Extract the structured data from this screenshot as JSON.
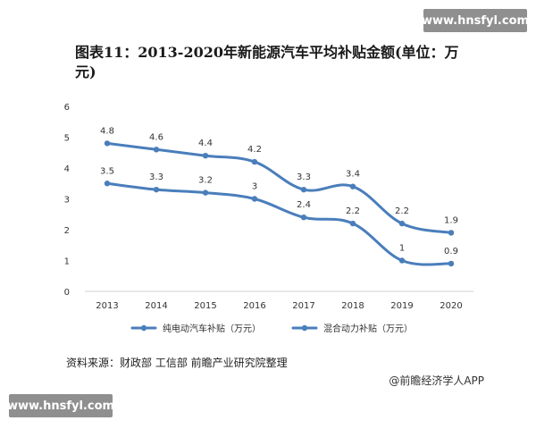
{
  "watermark": {
    "text": "www.hnsfyl.com"
  },
  "header": {
    "title": "图表11：2013-2020年新能源汽车平均补贴金额(单位：万元)"
  },
  "footer": {
    "source": "资料来源：财政部 工信部 前瞻产业研究院整理",
    "brand": "@前瞻经济学人APP"
  },
  "chart_data": {
    "type": "line",
    "title": "图表11：2013-2020年新能源汽车平均补贴金额(单位：万元)",
    "xlabel": "",
    "ylabel": "",
    "categories": [
      "2013",
      "2014",
      "2015",
      "2016",
      "2017",
      "2018",
      "2019",
      "2020"
    ],
    "ylim": [
      0,
      6
    ],
    "yticks": [
      "0",
      "1",
      "2",
      "3",
      "4",
      "5",
      "6"
    ],
    "grid": false,
    "legend_position": "bottom",
    "series": [
      {
        "name": "纯电动汽车补贴（万元）",
        "values": [
          4.8,
          4.6,
          4.4,
          4.2,
          3.3,
          3.4,
          2.2,
          1.9
        ],
        "labels": [
          "4.8",
          "4.6",
          "4.4",
          "4.2",
          "3.3",
          "3.4",
          "2.2",
          "1.9"
        ],
        "color": "#4a7ebb"
      },
      {
        "name": "混合动力补贴（万元）",
        "values": [
          3.5,
          3.3,
          3.2,
          3.0,
          2.4,
          2.2,
          1.0,
          0.9
        ],
        "labels": [
          "3.5",
          "3.3",
          "3.2",
          "3",
          "2.4",
          "2.2",
          "1",
          "0.9"
        ],
        "color": "#4a7ebb"
      }
    ]
  }
}
